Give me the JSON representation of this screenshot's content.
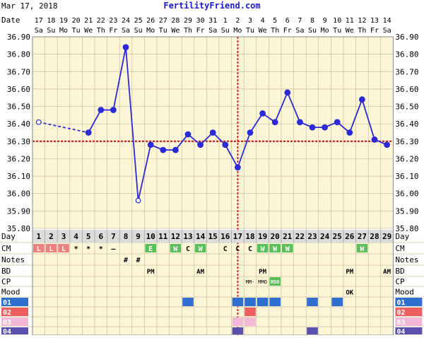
{
  "header": {
    "date": "Mar 17, 2018",
    "site": "FertilityFriend.com"
  },
  "colors": {
    "temp_line": "#2a2ad8",
    "coverline": "#d01818",
    "ovulation_line": "#d01818",
    "cm_L": "#f08080",
    "cm_W": "#58c058",
    "cm_E": "#58c058",
    "cp_text": "#58c058",
    "chart_bg": "#fdf6d6",
    "row_blue": "#2f6fd0",
    "row_red": "#ee6060",
    "row_pink": "#f2b8d8",
    "row_purple": "#5a50b0"
  },
  "row_labels": {
    "date": "Date",
    "day": "Day",
    "cm": "CM",
    "notes": "Notes",
    "bd": "BD",
    "cp": "CP",
    "mood": "Mood"
  },
  "dates": [
    "17",
    "18",
    "19",
    "20",
    "21",
    "22",
    "23",
    "24",
    "25",
    "26",
    "27",
    "28",
    "29",
    "30",
    "31",
    "1",
    "2",
    "3",
    "4",
    "5",
    "6",
    "7",
    "8",
    "9",
    "10",
    "11",
    "12",
    "13",
    "14"
  ],
  "weekdays": [
    "Sa",
    "Su",
    "Mo",
    "Tu",
    "We",
    "Th",
    "Fr",
    "Sa",
    "Su",
    "Mo",
    "Tu",
    "We",
    "Th",
    "Fr",
    "Sa",
    "Su",
    "Mo",
    "Tu",
    "We",
    "Th",
    "Fr",
    "Sa",
    "Su",
    "Mo",
    "Tu",
    "We",
    "Th",
    "Fr",
    "Sa"
  ],
  "days": [
    "1",
    "2",
    "3",
    "4",
    "5",
    "6",
    "7",
    "8",
    "9",
    "10",
    "11",
    "12",
    "13",
    "14",
    "15",
    "16",
    "17",
    "18",
    "19",
    "20",
    "21",
    "22",
    "23",
    "24",
    "25",
    "26",
    "27",
    "28",
    "29"
  ],
  "cm": [
    "L",
    "L",
    "L",
    "*",
    "*",
    "*",
    "–",
    "",
    "",
    "E",
    "",
    "W",
    "C",
    "W",
    "",
    "C",
    "C",
    "C",
    "W",
    "W",
    "W",
    "",
    "",
    "",
    "",
    "",
    "W",
    "",
    ""
  ],
  "notes": [
    "",
    "",
    "",
    "",
    "",
    "",
    "",
    "#",
    "#",
    "",
    "",
    "",
    "",
    "",
    "",
    "",
    "",
    "",
    "",
    "",
    "",
    "",
    "",
    "",
    "",
    "",
    "",
    "",
    ""
  ],
  "bd": [
    "",
    "",
    "",
    "",
    "",
    "",
    "",
    "",
    "",
    "PM",
    "",
    "",
    "",
    "AM",
    "",
    "",
    "",
    "",
    "PM",
    "",
    "",
    "",
    "",
    "",
    "",
    "PM",
    "",
    "",
    "AM"
  ],
  "cp": [
    "",
    "",
    "",
    "",
    "",
    "",
    "",
    "",
    "",
    "",
    "",
    "",
    "",
    "",
    "",
    "",
    "",
    "MM-",
    "MMO",
    "HSO",
    "",
    "",
    "",
    "",
    "",
    "",
    "",
    "",
    ""
  ],
  "mood": [
    "",
    "",
    "",
    "",
    "",
    "",
    "",
    "",
    "",
    "",
    "",
    "",
    "",
    "",
    "",
    "",
    "",
    "",
    "",
    "",
    "",
    "",
    "",
    "",
    "",
    "OK",
    "",
    "",
    ""
  ],
  "extra_rows": [
    {
      "label": "01",
      "cells": [
        13,
        17,
        18,
        19,
        20,
        23,
        25
      ]
    },
    {
      "label": "02",
      "cells": [
        18
      ]
    },
    {
      "label": "03",
      "cells": [
        17,
        18
      ]
    },
    {
      "label": "04",
      "cells": [
        17,
        23
      ]
    }
  ],
  "chart_data": {
    "type": "line",
    "title": "",
    "x": [
      "1",
      "2",
      "3",
      "4",
      "5",
      "6",
      "7",
      "8",
      "9",
      "10",
      "11",
      "12",
      "13",
      "14",
      "15",
      "16",
      "17",
      "18",
      "19",
      "20",
      "21",
      "22",
      "23",
      "24",
      "25",
      "26",
      "27",
      "28",
      "29"
    ],
    "ylim": [
      35.8,
      36.9
    ],
    "yticks": [
      "36.90",
      "36.80",
      "36.70",
      "36.60",
      "36.50",
      "36.40",
      "36.30",
      "36.20",
      "36.10",
      "36.00",
      "35.90",
      "35.80"
    ],
    "series": [
      {
        "values": [
          36.41,
          null,
          null,
          null,
          36.35,
          36.48,
          36.48,
          36.84,
          35.96,
          36.28,
          36.25,
          36.25,
          36.34,
          36.28,
          36.35,
          36.28,
          36.15,
          36.35,
          36.46,
          36.41,
          36.58,
          36.41,
          36.38,
          36.38,
          36.41,
          36.35,
          36.54,
          36.31,
          36.28
        ],
        "open_points": [
          1,
          9
        ]
      }
    ],
    "coverline": 36.3,
    "ovulation_day": 17,
    "grid": true
  }
}
